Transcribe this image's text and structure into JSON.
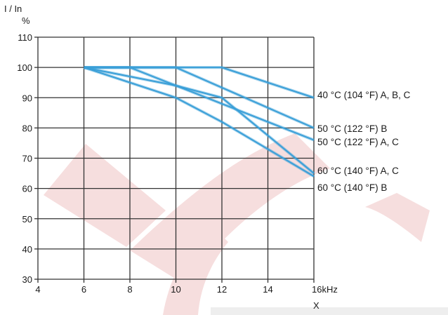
{
  "chart_data": {
    "type": "line",
    "ylabel": "I / In",
    "yunit": "%",
    "xlabel": "X",
    "xunit": "kHz",
    "xlim": [
      4,
      16
    ],
    "ylim": [
      30,
      110
    ],
    "xticks": [
      4,
      6,
      8,
      10,
      12,
      14,
      16
    ],
    "yticks": [
      30,
      40,
      50,
      60,
      70,
      80,
      90,
      100,
      110
    ],
    "grid": true,
    "line_color": "#3a9fd8",
    "axis_color": "#333333",
    "watermark_color": "#f6dede",
    "series": [
      {
        "name": "40 °C (104 °F) A, B, C",
        "x": [
          6,
          12,
          16
        ],
        "y": [
          100,
          100,
          90
        ]
      },
      {
        "name": "50 °C (122 °F) B",
        "x": [
          6,
          10,
          16
        ],
        "y": [
          100,
          100,
          80
        ]
      },
      {
        "name": "50 °C (122 °F) A, C",
        "x": [
          6,
          8,
          16
        ],
        "y": [
          100,
          100,
          76
        ]
      },
      {
        "name": "60 °C (140 °F) A, C",
        "x": [
          6,
          10,
          12,
          16
        ],
        "y": [
          100,
          94,
          90,
          65
        ]
      },
      {
        "name": "60 °C (140 °F) B",
        "x": [
          6,
          10,
          12,
          16
        ],
        "y": [
          100,
          90,
          82,
          64
        ]
      }
    ]
  }
}
